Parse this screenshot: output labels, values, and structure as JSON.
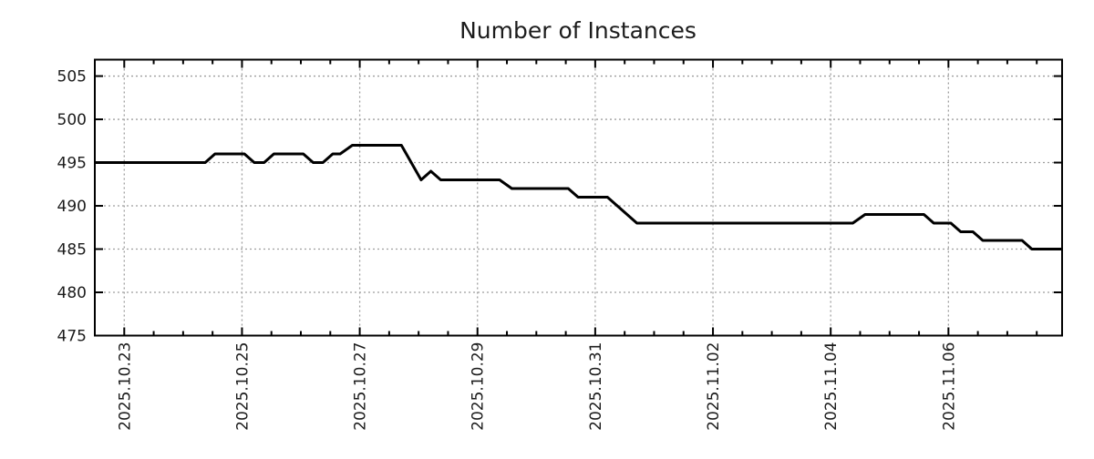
{
  "title": "Number of Instances",
  "colors": {
    "line": "#000000",
    "grid": "#9e9e9e",
    "axis": "#000000",
    "text": "#1c1c1c",
    "background": "#ffffff"
  },
  "chart_data": {
    "type": "line",
    "title": "Number of Instances",
    "xlabel": "",
    "ylabel": "",
    "x_type": "time",
    "x_domain": [
      "2025-10-22 12:00",
      "2025-11-07 22:20"
    ],
    "ylim": [
      475,
      506.9
    ],
    "yticks": [
      475,
      480,
      485,
      490,
      495,
      500,
      505
    ],
    "x_ticks": [
      {
        "t": "2025-10-23 00:00",
        "label": "2025.10.23"
      },
      {
        "t": "2025-10-25 00:00",
        "label": "2025.10.25"
      },
      {
        "t": "2025-10-27 00:00",
        "label": "2025.10.27"
      },
      {
        "t": "2025-10-29 00:00",
        "label": "2025.10.29"
      },
      {
        "t": "2025-10-31 00:00",
        "label": "2025.10.31"
      },
      {
        "t": "2025-11-02 00:00",
        "label": "2025.11.02"
      },
      {
        "t": "2025-11-04 00:00",
        "label": "2025.11.04"
      },
      {
        "t": "2025-11-06 00:00",
        "label": "2025.11.06"
      }
    ],
    "x_minor_interval_days": 0.5,
    "grid": true,
    "legend": null,
    "series": [
      {
        "color": "#000000",
        "line_width": 3,
        "points": [
          [
            "2025-10-22 12:00",
            495
          ],
          [
            "2025-10-24 09:00",
            495
          ],
          [
            "2025-10-24 13:00",
            496
          ],
          [
            "2025-10-25 01:00",
            496
          ],
          [
            "2025-10-25 05:00",
            495
          ],
          [
            "2025-10-25 09:00",
            495
          ],
          [
            "2025-10-25 13:00",
            496
          ],
          [
            "2025-10-26 01:00",
            496
          ],
          [
            "2025-10-26 05:00",
            495
          ],
          [
            "2025-10-26 09:00",
            495
          ],
          [
            "2025-10-26 13:00",
            496
          ],
          [
            "2025-10-26 16:00",
            496
          ],
          [
            "2025-10-26 21:00",
            497
          ],
          [
            "2025-10-27 17:00",
            497
          ],
          [
            "2025-10-28 01:00",
            493
          ],
          [
            "2025-10-28 05:00",
            494
          ],
          [
            "2025-10-28 09:00",
            493
          ],
          [
            "2025-10-29 09:00",
            493
          ],
          [
            "2025-10-29 14:00",
            492
          ],
          [
            "2025-10-30 13:00",
            492
          ],
          [
            "2025-10-30 17:00",
            491
          ],
          [
            "2025-10-31 05:00",
            491
          ],
          [
            "2025-10-31 17:00",
            488
          ],
          [
            "2025-11-04 09:00",
            488
          ],
          [
            "2025-11-04 14:00",
            489
          ],
          [
            "2025-11-05 14:00",
            489
          ],
          [
            "2025-11-05 18:00",
            488
          ],
          [
            "2025-11-06 01:00",
            488
          ],
          [
            "2025-11-06 05:00",
            487
          ],
          [
            "2025-11-06 10:00",
            487
          ],
          [
            "2025-11-06 14:00",
            486
          ],
          [
            "2025-11-07 06:00",
            486
          ],
          [
            "2025-11-07 10:00",
            485
          ],
          [
            "2025-11-07 22:00",
            485
          ]
        ]
      }
    ]
  }
}
